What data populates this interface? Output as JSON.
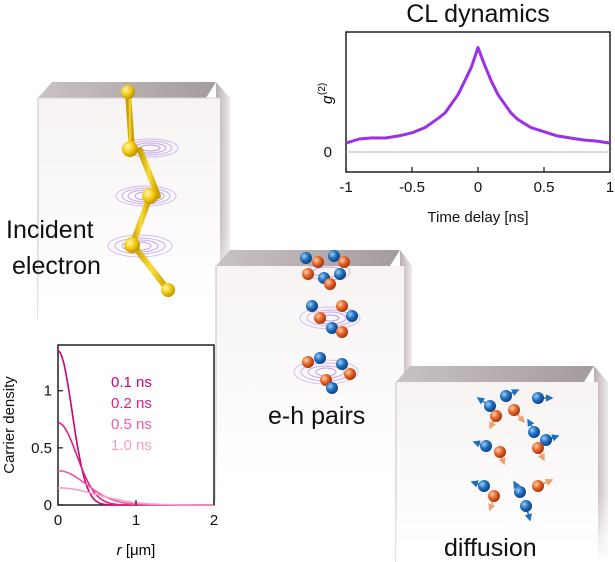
{
  "labels": {
    "incident_line1": "Incident",
    "incident_line2": "electron",
    "eh_pairs": "e-h pairs",
    "diffusion": "diffusion"
  },
  "chart_data": [
    {
      "type": "line",
      "title": "CL dynamics",
      "xlabel": "Time delay [ns]",
      "ylabel_main": "g",
      "ylabel_sup": "(2)",
      "xlim": [
        -1,
        1
      ],
      "xticks": [
        -1,
        -0.5,
        0,
        0.5,
        1
      ],
      "xtick_labels": [
        "-1",
        "-0.5",
        "0",
        "0.5",
        "1"
      ],
      "ytick_labels": [
        "0"
      ],
      "color": "#9b30e6",
      "series": [
        {
          "name": "g2",
          "x": [
            -1.0,
            -0.9,
            -0.8,
            -0.7,
            -0.6,
            -0.5,
            -0.4,
            -0.3,
            -0.25,
            -0.2,
            -0.15,
            -0.1,
            -0.05,
            0.0,
            0.05,
            0.1,
            0.15,
            0.2,
            0.25,
            0.3,
            0.4,
            0.5,
            0.6,
            0.7,
            0.8,
            0.9,
            1.0
          ],
          "y": [
            0.09,
            0.12,
            0.14,
            0.13,
            0.16,
            0.18,
            0.24,
            0.32,
            0.38,
            0.46,
            0.56,
            0.68,
            0.82,
            1.0,
            0.84,
            0.68,
            0.56,
            0.46,
            0.38,
            0.31,
            0.24,
            0.19,
            0.16,
            0.13,
            0.12,
            0.1,
            0.09
          ]
        }
      ]
    },
    {
      "type": "line",
      "xlabel_main": "r",
      "xlabel_unit": " [μm]",
      "ylabel": "Carrier density",
      "xlim": [
        0,
        2
      ],
      "ylim": [
        0,
        1.4
      ],
      "xticks": [
        0,
        1,
        2
      ],
      "xtick_labels": [
        "0",
        "1",
        "2"
      ],
      "yticks": [
        0,
        0.5,
        1
      ],
      "ytick_labels": [
        "0",
        "0.5",
        "1"
      ],
      "series": [
        {
          "name": "0.1 ns",
          "color": "#cc007a",
          "sigma": 0.18,
          "amp": 1.35
        },
        {
          "name": "0.2 ns",
          "color": "#e0207f",
          "sigma": 0.24,
          "amp": 0.72
        },
        {
          "name": "0.5 ns",
          "color": "#ee5aa5",
          "sigma": 0.36,
          "amp": 0.3
        },
        {
          "name": "1.0 ns",
          "color": "#f4a0c8",
          "sigma": 0.5,
          "amp": 0.15
        }
      ]
    }
  ]
}
